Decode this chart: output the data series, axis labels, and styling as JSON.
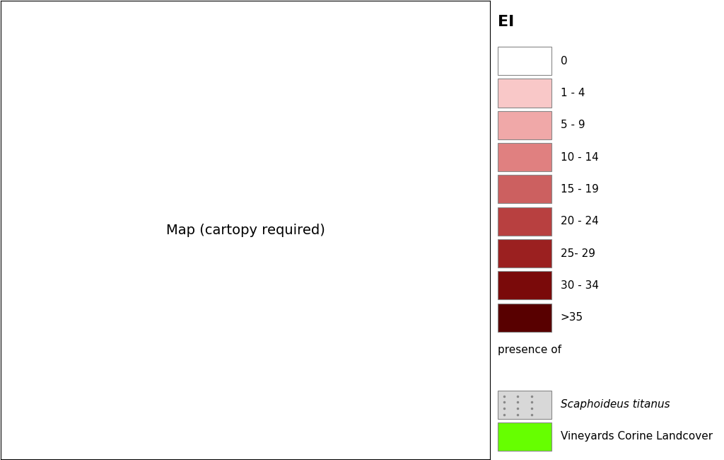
{
  "title": "",
  "legend_title": "EI",
  "ei_labels": [
    "0",
    "1 - 4",
    "5 - 9",
    "10 - 14",
    "15 - 19",
    "20 - 24",
    "25- 29",
    "30 - 34",
    ">35"
  ],
  "ei_colors": [
    "#FFFFFF",
    "#F9C8C8",
    "#F0A8A8",
    "#E08080",
    "#CC6060",
    "#B84040",
    "#9B2020",
    "#7A0A0A",
    "#580000"
  ],
  "presence_title": "presence of",
  "scaphoideus_label": "Scaphoideus titanus",
  "vineyard_label": "Vineyards Corine Landcover",
  "scaphoideus_color": "#D0D0D0",
  "vineyard_color": "#66FF00",
  "bg_color": "#FFFFFF",
  "map_bg": "#FFFFFF",
  "figsize": [
    10.24,
    6.5
  ],
  "dpi": 100
}
